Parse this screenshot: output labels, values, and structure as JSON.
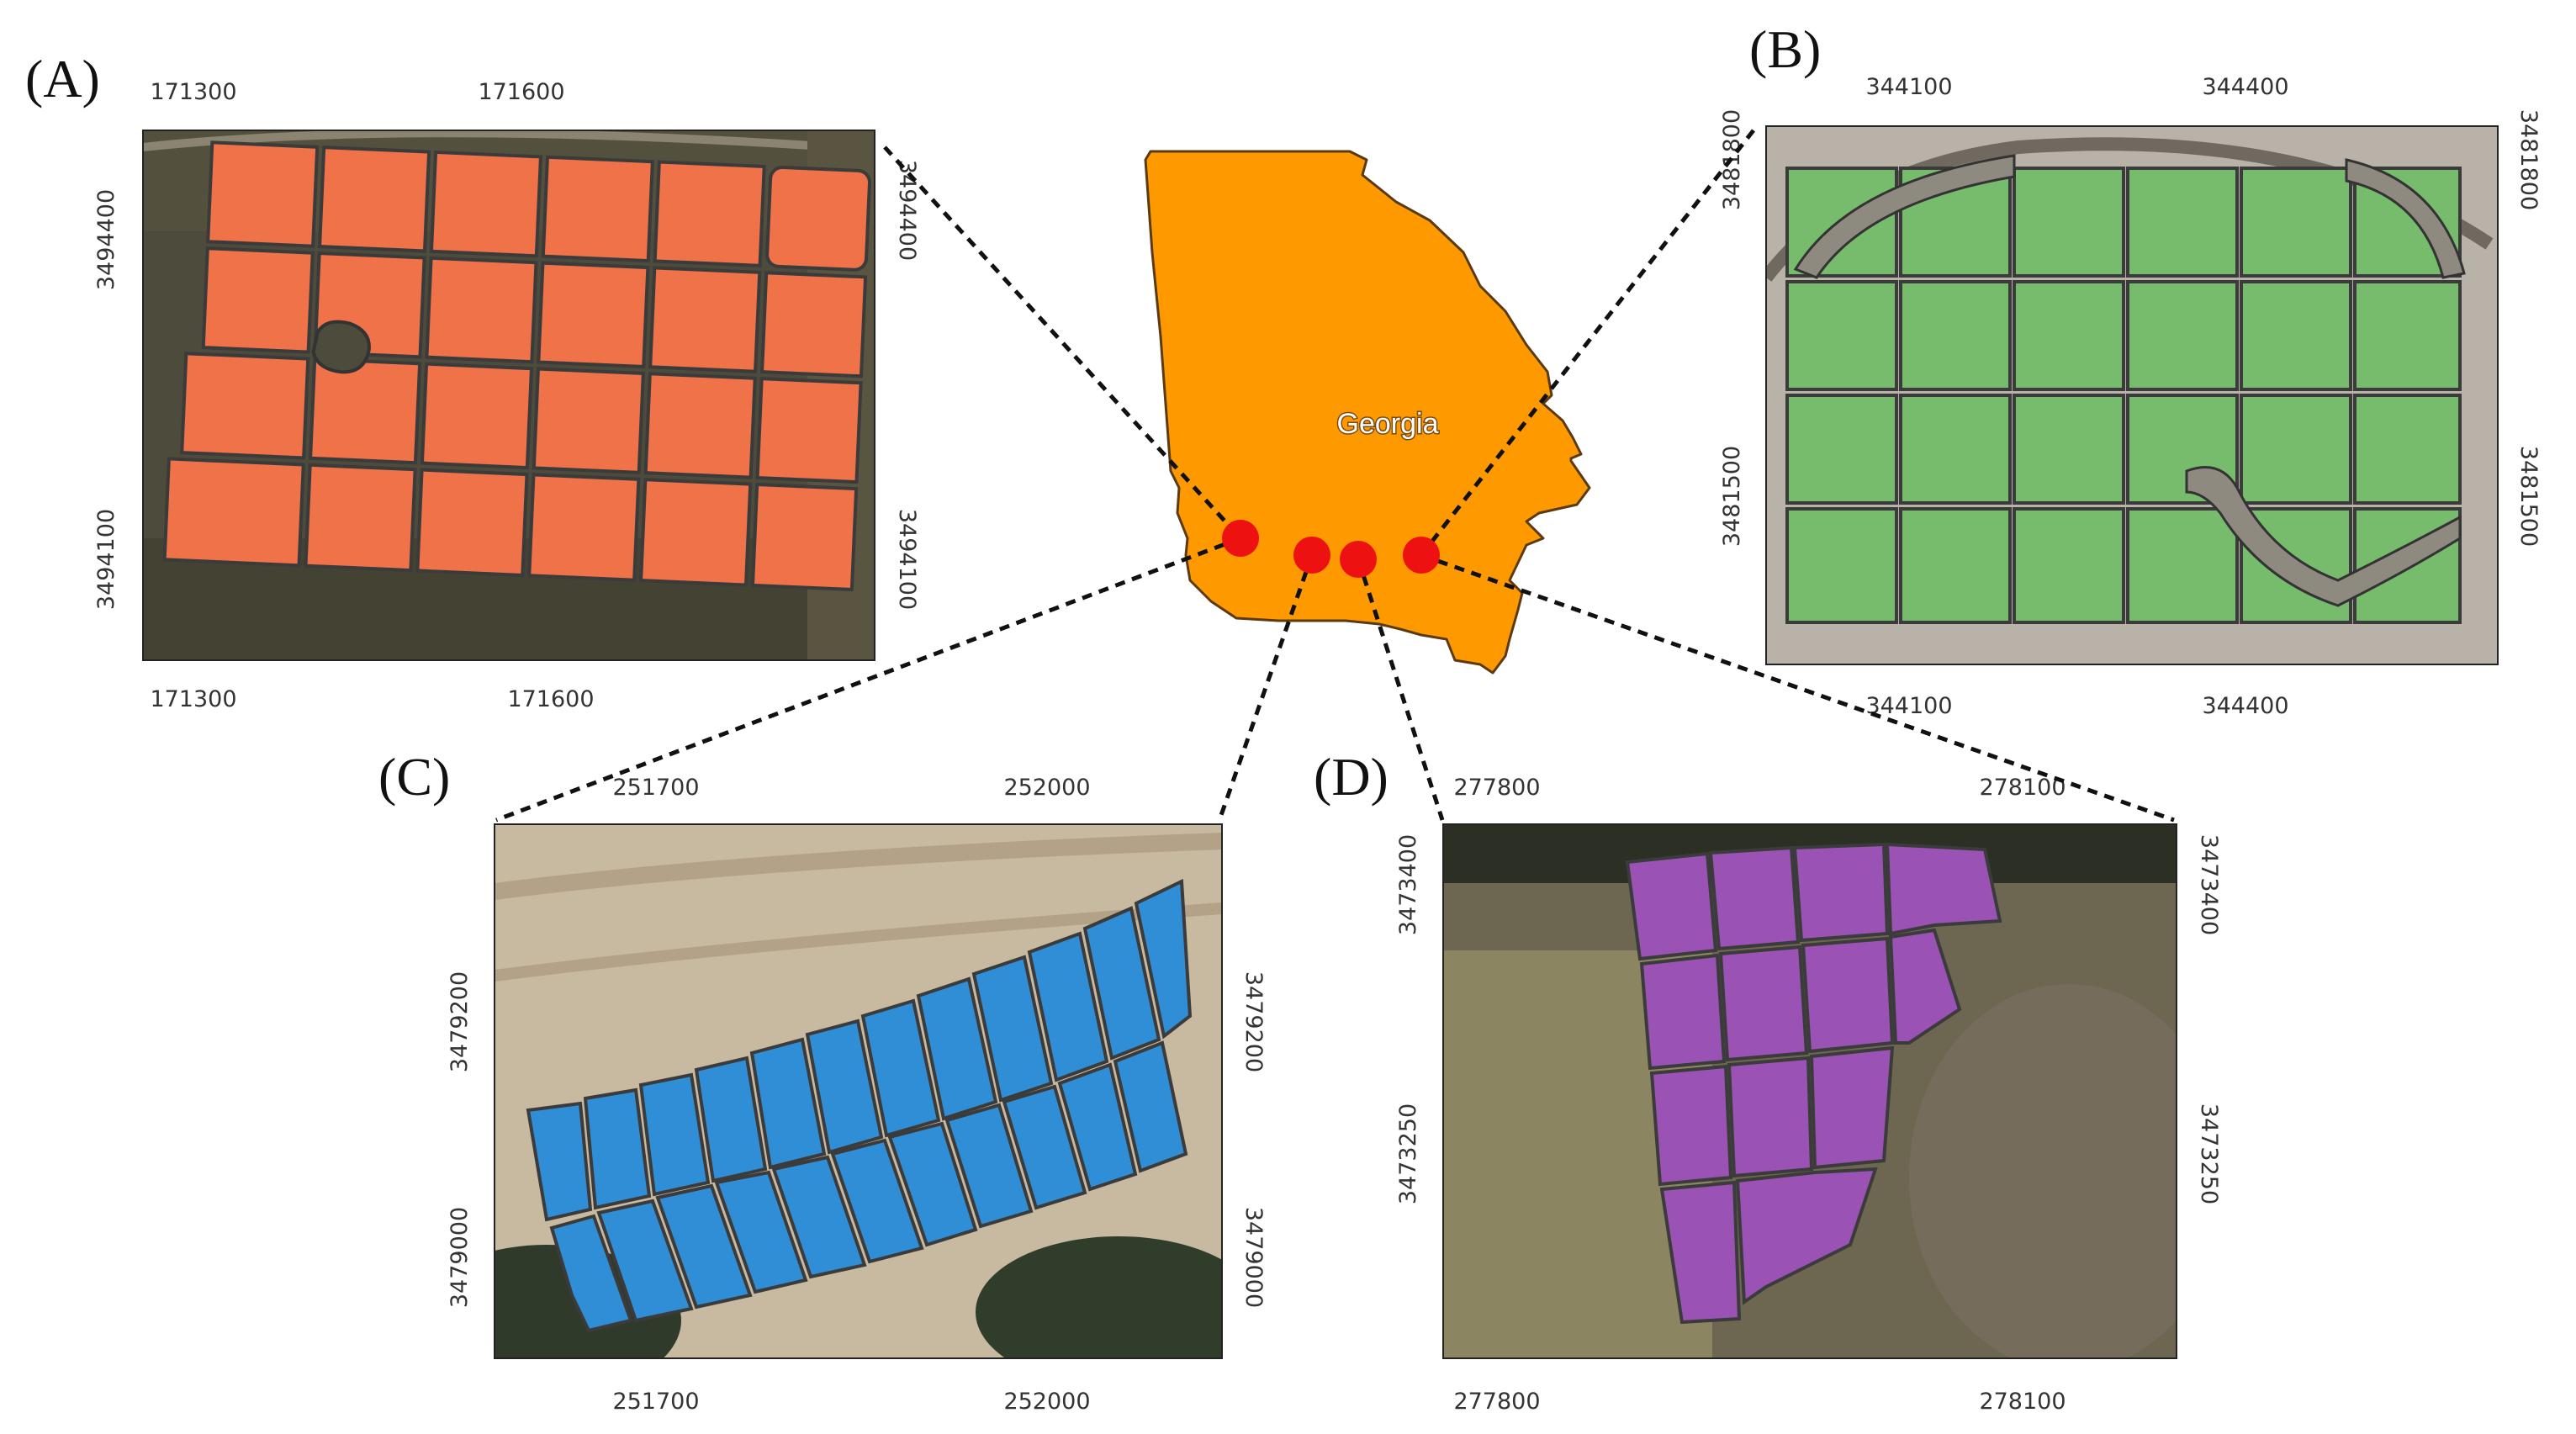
{
  "state": {
    "name": "Georgia",
    "fill": "#ff9900",
    "marker_color": "#ee1111"
  },
  "panels": {
    "A": {
      "label": "(A)",
      "field_color": "#ef7248",
      "imagery_base": "#4d4b3c",
      "x_ticks_top": [
        "171300",
        "171600"
      ],
      "x_ticks_bottom": [
        "171300",
        "171600"
      ],
      "y_ticks_left": [
        "3494400",
        "3494100"
      ],
      "y_ticks_right": [
        "3494400",
        "3494100"
      ]
    },
    "B": {
      "label": "(B)",
      "field_color": "#77bb6d",
      "imagery_base": "#b9b2a8",
      "x_ticks_top": [
        "344100",
        "344400"
      ],
      "x_ticks_bottom": [
        "344100",
        "344400"
      ],
      "y_ticks_left": [
        "3481800",
        "3481500"
      ],
      "y_ticks_right": [
        "3481800",
        "3481500"
      ]
    },
    "C": {
      "label": "(C)",
      "field_color": "#2f8ed5",
      "imagery_base": "#c8b9a1",
      "x_ticks_top": [
        "251700",
        "252000"
      ],
      "x_ticks_bottom": [
        "251700",
        "252000"
      ],
      "y_ticks_left": [
        "3479200",
        "3479000"
      ],
      "y_ticks_right": [
        "3479200",
        "3479000"
      ]
    },
    "D": {
      "label": "(D)",
      "field_color": "#9a52b4",
      "imagery_base": "#6d6752",
      "x_ticks_top": [
        "277800",
        "278100"
      ],
      "x_ticks_bottom": [
        "277800",
        "278100"
      ],
      "y_ticks_left": [
        "3473400",
        "3473250"
      ],
      "y_ticks_right": [
        "3473400",
        "3473250"
      ]
    }
  }
}
